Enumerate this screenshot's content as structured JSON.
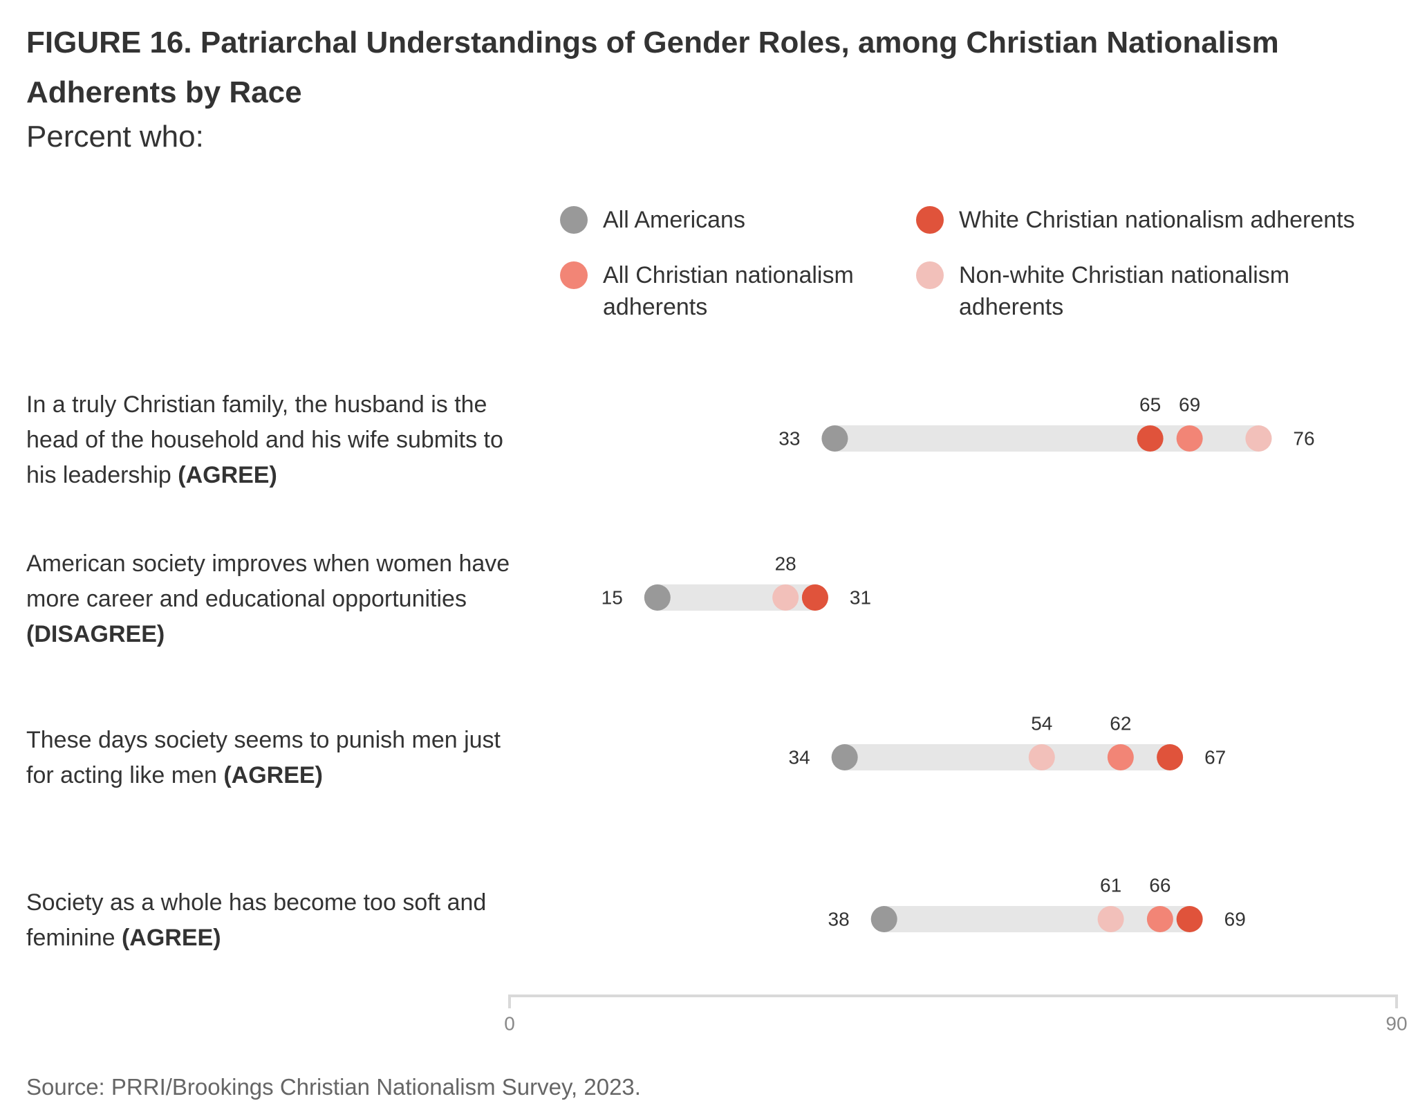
{
  "title": "FIGURE 16. Patriarchal Understandings of Gender Roles, among Christian Nationalism Adherents by Race",
  "subtitle": "Percent who:",
  "source": "Source: PRRI/Brookings Christian Nationalism Survey, 2023.",
  "legend": [
    {
      "label": "All Americans",
      "color": "#999999"
    },
    {
      "label": "White Christian nationalism adherents",
      "color": "#E0533B"
    },
    {
      "label": "All Christian nationalism\nadherents",
      "color": "#F28576"
    },
    {
      "label": "Non-white Christian nationalism\nadherents",
      "color": "#F2C0BA"
    }
  ],
  "rows": [
    {
      "text": "In a truly Christian family, the husband is the head of the household and his wife submits to his leadership",
      "tag": "(AGREE)"
    },
    {
      "text": "American society improves when women have more career and educational opportunities",
      "tag": "(DISAGREE)"
    },
    {
      "text": "These days society seems to punish men just for acting like men",
      "tag": "(AGREE)"
    },
    {
      "text": "Society as a whole has become too soft and feminine",
      "tag": "(AGREE)"
    }
  ],
  "chart_data": {
    "type": "scatter",
    "subtype": "dot-range",
    "xlim": [
      0,
      90
    ],
    "x_ticks": [
      "0",
      "90"
    ],
    "grid": false,
    "legend_position": "top",
    "categories": [
      "In a truly Christian family, the husband is the head of the household and his wife submits to his leadership (AGREE)",
      "American society improves when women have more career and educational opportunities (DISAGREE)",
      "These days society seems to punish men just for acting like men (AGREE)",
      "Society as a whole has become too soft and feminine (AGREE)"
    ],
    "series": [
      {
        "name": "All Americans",
        "color": "#999999",
        "values": [
          33,
          15,
          34,
          38
        ]
      },
      {
        "name": "All Christian nationalism adherents",
        "color": "#F28576",
        "values": [
          69,
          31,
          62,
          66
        ]
      },
      {
        "name": "Non-white Christian nationalism adherents",
        "color": "#F2C0BA",
        "values": [
          76,
          28,
          54,
          61
        ]
      },
      {
        "name": "White Christian nationalism adherents",
        "color": "#E0533B",
        "values": [
          65,
          31,
          67,
          69
        ]
      }
    ],
    "data_labels": [
      {
        "left": "33",
        "above": [
          "65",
          "69"
        ],
        "right": "76"
      },
      {
        "left": "15",
        "above": [
          "28"
        ],
        "right": "31"
      },
      {
        "left": "34",
        "above": [
          "54",
          "62"
        ],
        "right": "67"
      },
      {
        "left": "38",
        "above": [
          "61",
          "66"
        ],
        "right": "69"
      }
    ]
  }
}
